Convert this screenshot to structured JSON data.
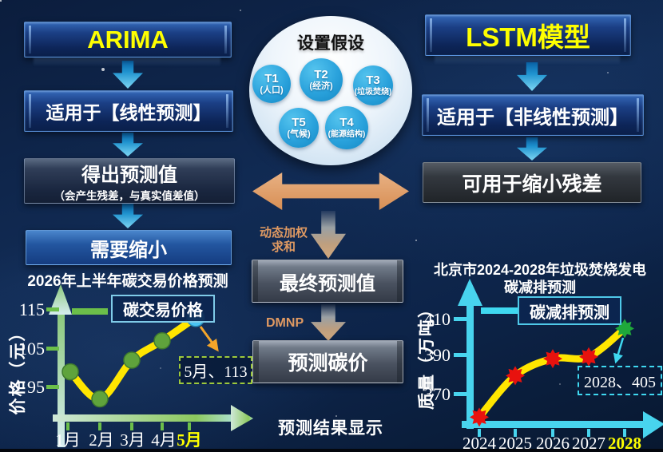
{
  "left_flow": {
    "title": "ARIMA",
    "step1": "适用于【线性预测】",
    "step2_main": "得出预测值",
    "step2_sub": "（会产生残差，与真实值差值）",
    "step3": "需要缩小"
  },
  "right_flow": {
    "title": "LSTM模型",
    "step1": "适用于【非线性预测】",
    "step2": "可用于缩小残差"
  },
  "assumptions": {
    "title": "设置假设",
    "bubbles": [
      {
        "id": "T1",
        "label": "(人口)"
      },
      {
        "id": "T2",
        "label": "(经济)"
      },
      {
        "id": "T3",
        "label": "(垃圾焚烧)"
      },
      {
        "id": "T5",
        "label": "(气候)"
      },
      {
        "id": "T4",
        "label": "(能源结构)"
      }
    ]
  },
  "middle_flow": {
    "weight_line1": "动态加权",
    "weight_line2": "求和",
    "final_value": "最终预测值",
    "dmnp_label": "DMNP",
    "predict_price": "预测碳价",
    "result_caption": "预测结果显示"
  },
  "chart_data": [
    {
      "type": "line",
      "title": "2026年上半年碳交易价格预测",
      "ylabel": "价格（元）",
      "xlabel": "",
      "categories": [
        "1月",
        "2月",
        "3月",
        "4月",
        "5月"
      ],
      "values": [
        99,
        92,
        102,
        107,
        113
      ],
      "yticks": [
        "115",
        "105",
        "95"
      ],
      "ylim": [
        88,
        118
      ],
      "legend": "碳交易价格",
      "legend_position": "top",
      "grid": false,
      "annotation": "5月、113",
      "highlight_category": "5月",
      "line_color": "#ffe600",
      "marker_color": "#5fa33c",
      "highlight_marker_color": "#49c4f2",
      "axis_color": "#8cc95e"
    },
    {
      "type": "line",
      "title_line1": "北京市2024-2028年垃圾焚烧发电",
      "title_line2": "碳减排预测",
      "ylabel": "质量（万吨）",
      "xlabel": "",
      "categories": [
        "2024",
        "2025",
        "2026",
        "2027",
        "2028"
      ],
      "values": [
        358,
        380,
        389,
        390,
        405
      ],
      "yticks": [
        "410",
        "390",
        "370"
      ],
      "ylim": [
        350,
        415
      ],
      "legend": "碳减排预测",
      "legend_position": "top",
      "grid": false,
      "annotation": "2028、405",
      "highlight_category": "2028",
      "line_color": "#ffe600",
      "marker_color": "#e8120e",
      "highlight_marker_color": "#1fa83a",
      "axis_color": "#48d4ee"
    }
  ]
}
